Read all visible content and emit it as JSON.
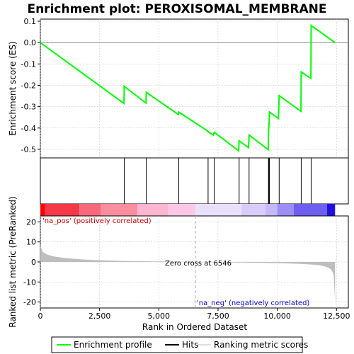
{
  "chart_data": {
    "type": "line",
    "title": "Enrichment plot: PEROXISOMAL_MEMBRANE",
    "top_panel": {
      "ylabel": "Enrichment score (ES)",
      "ylim": [
        -0.54,
        0.11
      ],
      "yticks": [
        "0.1",
        "0.0",
        "-0.1",
        "-0.2",
        "-0.3",
        "-0.4",
        "-0.5"
      ],
      "series": [
        {
          "name": "Enrichment profile",
          "color": "#00ff00",
          "x": [
            0,
            3530,
            3540,
            4460,
            4470,
            5830,
            5840,
            7050,
            7080,
            7300,
            7340,
            8370,
            8390,
            8790,
            8810,
            9620,
            9630,
            9650,
            9670,
            10050,
            10080,
            11000,
            11010,
            11420,
            11430,
            12440
          ],
          "y": [
            0.0,
            -0.285,
            -0.205,
            -0.283,
            -0.233,
            -0.337,
            -0.325,
            -0.413,
            -0.418,
            -0.433,
            -0.42,
            -0.507,
            -0.46,
            -0.492,
            -0.433,
            -0.502,
            -0.413,
            -0.39,
            -0.325,
            -0.356,
            -0.248,
            -0.322,
            -0.137,
            -0.168,
            0.08,
            0.0
          ]
        }
      ]
    },
    "hits": {
      "name": "Hits",
      "positions": [
        3540,
        4470,
        5840,
        7080,
        7340,
        8390,
        8810,
        9630,
        9650,
        9670,
        10080,
        11010,
        11430
      ]
    },
    "bottom_panel": {
      "ylabel": "Ranked list metric (PreRanked)",
      "xlabel": "Rank in Ordered Dataset",
      "ylim": [
        -23,
        23
      ],
      "yticks": [
        "20",
        "10",
        "0",
        "-10",
        "-20"
      ],
      "xticks": [
        "0",
        "2,500",
        "5,000",
        "7,500",
        "10,000",
        "12,500"
      ],
      "xtick_values": [
        0,
        2500,
        5000,
        7500,
        10000,
        12500
      ],
      "xlim": [
        0,
        13000
      ],
      "series_name": "Ranking metric scores",
      "metric_x": [
        0,
        100,
        300,
        600,
        1000,
        1500,
        2000,
        2500,
        3000,
        3500,
        4000,
        5000,
        6000,
        6546,
        7000,
        8000,
        9000,
        10000,
        10500,
        11000,
        11500,
        11800,
        12000,
        12150,
        12250,
        12300,
        12350,
        12380,
        12400,
        12420,
        12440
      ],
      "metric_y": [
        8.0,
        5.0,
        3.6,
        2.7,
        2.0,
        1.5,
        1.1,
        0.9,
        0.7,
        0.5,
        0.4,
        0.25,
        0.1,
        0.0,
        -0.1,
        -0.25,
        -0.4,
        -0.6,
        -0.75,
        -0.95,
        -1.3,
        -1.7,
        -2.2,
        -2.8,
        -3.6,
        -4.3,
        -5.5,
        -7.0,
        -10.0,
        -15.0,
        -21.0
      ],
      "zero_cross": 6546,
      "zero_cross_label": "Zero cross at 6546",
      "pos_label": "'na_pos' (positively correlated)",
      "neg_label": "'na_neg' (negatively correlated)"
    },
    "legend": [
      "Enrichment profile",
      "Hits",
      "Ranking metric scores"
    ],
    "legend_placement": "bottom"
  },
  "colors": {
    "profile": "#00ff00",
    "hits": "#000000",
    "metric": "#bebebe",
    "pos_text": "#cc0000",
    "neg_text": "#0000cc",
    "zero_line": "#aaaaaa",
    "grid": "#c0c0c0"
  },
  "colorbar": [
    {
      "from": 0,
      "to": 200,
      "color": "#ff0000"
    },
    {
      "from": 200,
      "to": 1650,
      "color": "#f33848"
    },
    {
      "from": 1650,
      "to": 2550,
      "color": "#f7697a"
    },
    {
      "from": 2550,
      "to": 4100,
      "color": "#fb8e9e"
    },
    {
      "from": 4100,
      "to": 5400,
      "color": "#fdb6cf"
    },
    {
      "from": 5400,
      "to": 6546,
      "color": "#fdc8e6"
    },
    {
      "from": 6546,
      "to": 8500,
      "color": "#e9e0fb"
    },
    {
      "from": 8500,
      "to": 9500,
      "color": "#d8ccfa"
    },
    {
      "from": 9500,
      "to": 10000,
      "color": "#c4b9f7"
    },
    {
      "from": 10000,
      "to": 10700,
      "color": "#9c8ef2"
    },
    {
      "from": 10700,
      "to": 12100,
      "color": "#6e5ff0"
    },
    {
      "from": 12100,
      "to": 12440,
      "color": "#2010e0"
    }
  ]
}
